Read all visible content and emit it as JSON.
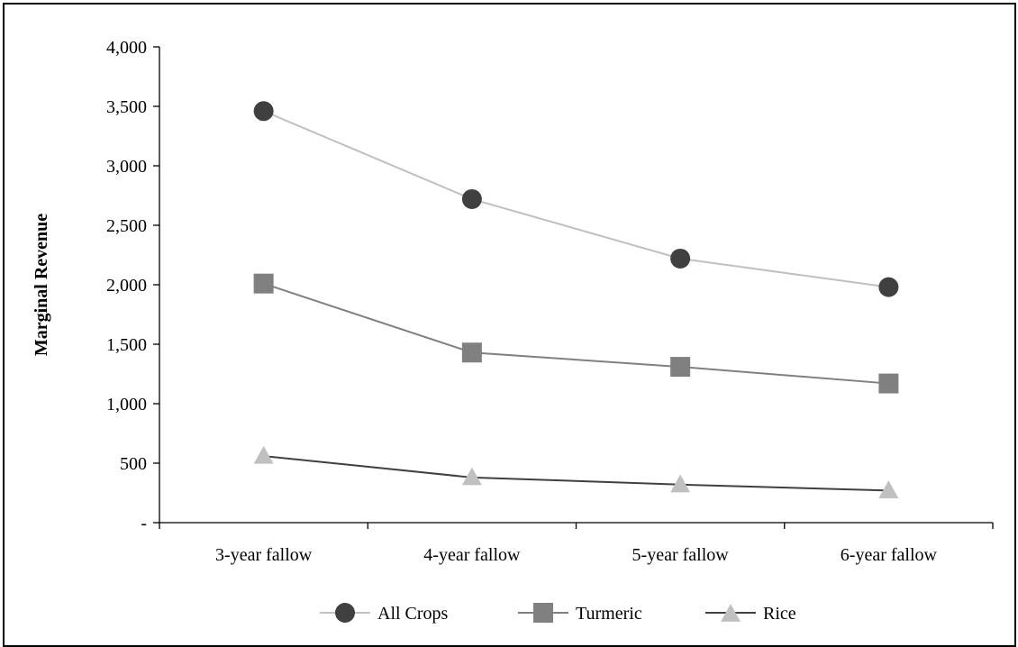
{
  "chart_data": {
    "type": "line",
    "title": "",
    "xlabel": "",
    "ylabel": "Marginal Revenue",
    "categories": [
      "3-year fallow",
      "4-year fallow",
      "5-year fallow",
      "6-year fallow"
    ],
    "ylim": [
      0,
      4000
    ],
    "yticks": [
      0,
      500,
      1000,
      1500,
      2000,
      2500,
      3000,
      3500,
      4000
    ],
    "ytick_labels": [
      "-",
      "500",
      "1,000",
      "1,500",
      "2,000",
      "2,500",
      "3,000",
      "3,500",
      "4,000"
    ],
    "grid": false,
    "legend_position": "bottom",
    "series": [
      {
        "name": "All Crops",
        "values": [
          3460,
          2720,
          2220,
          1980
        ],
        "marker": "circle",
        "line_color": "#c0c0c0",
        "marker_color": "#404040"
      },
      {
        "name": "Turmeric",
        "values": [
          2010,
          1430,
          1310,
          1170
        ],
        "marker": "square",
        "line_color": "#808080",
        "marker_color": "#808080"
      },
      {
        "name": "Rice",
        "values": [
          570,
          390,
          330,
          280
        ],
        "marker": "triangle",
        "line_color": "#404040",
        "marker_color": "#c0c0c0",
        "line_values": [
          560,
          380,
          320,
          270
        ]
      }
    ]
  }
}
